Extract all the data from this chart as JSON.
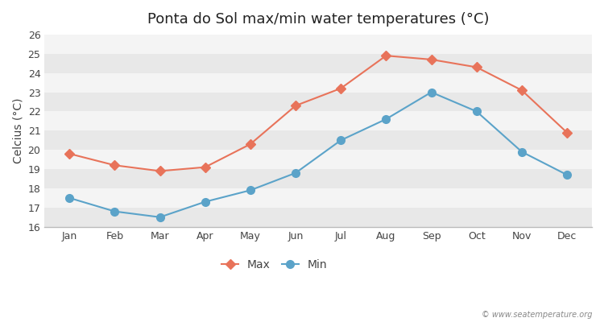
{
  "title": "Ponta do Sol max/min water temperatures (°C)",
  "months": [
    "Jan",
    "Feb",
    "Mar",
    "Apr",
    "May",
    "Jun",
    "Jul",
    "Aug",
    "Sep",
    "Oct",
    "Nov",
    "Dec"
  ],
  "max_temps": [
    19.8,
    19.2,
    18.9,
    19.1,
    20.3,
    22.3,
    23.2,
    24.9,
    24.7,
    24.3,
    23.1,
    20.9
  ],
  "min_temps": [
    17.5,
    16.8,
    16.5,
    17.3,
    17.9,
    18.8,
    20.5,
    21.6,
    23.0,
    22.0,
    19.9,
    18.7
  ],
  "max_color": "#e8735a",
  "min_color": "#5ba3c9",
  "ylim": [
    16,
    26
  ],
  "yticks": [
    16,
    17,
    18,
    19,
    20,
    21,
    22,
    23,
    24,
    25,
    26
  ],
  "ylabel": "Celcius (°C)",
  "fig_background_color": "#ffffff",
  "band_colors": [
    "#e8e8e8",
    "#f4f4f4"
  ],
  "watermark": "© www.seatemperature.org",
  "legend_max": "Max",
  "legend_min": "Min",
  "title_fontsize": 13,
  "label_fontsize": 10,
  "tick_fontsize": 9,
  "marker_size": 6,
  "linewidth": 1.5
}
